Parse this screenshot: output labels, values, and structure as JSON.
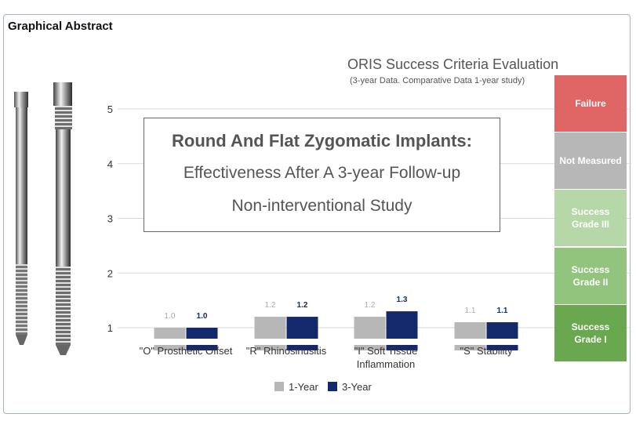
{
  "header": {
    "title": "Graphical Abstract"
  },
  "chart_title": "ORIS Success Criteria Evaluation",
  "chart_subtitle": "(3-year Data. Comparative Data 1-year study)",
  "study_box": {
    "line1": "Round And Flat Zygomatic Implants:",
    "line2": "Effectiveness After A 3-year Follow-up",
    "line3": "Non-interventional Study"
  },
  "grades": [
    {
      "label": "Failure",
      "color": "#e06666"
    },
    {
      "label": "Not Measured",
      "color": "#b7b7b7"
    },
    {
      "label": "Success Grade III",
      "color": "#b6d7a8"
    },
    {
      "label": "Success Grade II",
      "color": "#93c47d"
    },
    {
      "label": "Success Grade I",
      "color": "#6aa84f"
    }
  ],
  "chart_data": {
    "type": "bar",
    "categories": [
      "\"O\" Prosthetic Offset",
      "\"R\" Rhinosinusitis",
      "\"I\" Soft Tissue Inflammation",
      "\"S\" Stability"
    ],
    "series": [
      {
        "name": "1-Year",
        "values": [
          1.0,
          1.2,
          1.2,
          1.1
        ],
        "labels": [
          "1.0",
          "1.2",
          "1.2",
          "1.1"
        ],
        "color": "#b7b7b7"
      },
      {
        "name": "3-Year",
        "values": [
          1.0,
          1.2,
          1.3,
          1.1
        ],
        "labels": [
          "1.0",
          "1.2",
          "1.3",
          "1.1"
        ],
        "color": "#14296b"
      }
    ],
    "yticks": [
      "1",
      "2",
      "3",
      "4",
      "5"
    ],
    "ylim": [
      0.8,
      5.5
    ],
    "grid": true,
    "legend": "bottom"
  }
}
